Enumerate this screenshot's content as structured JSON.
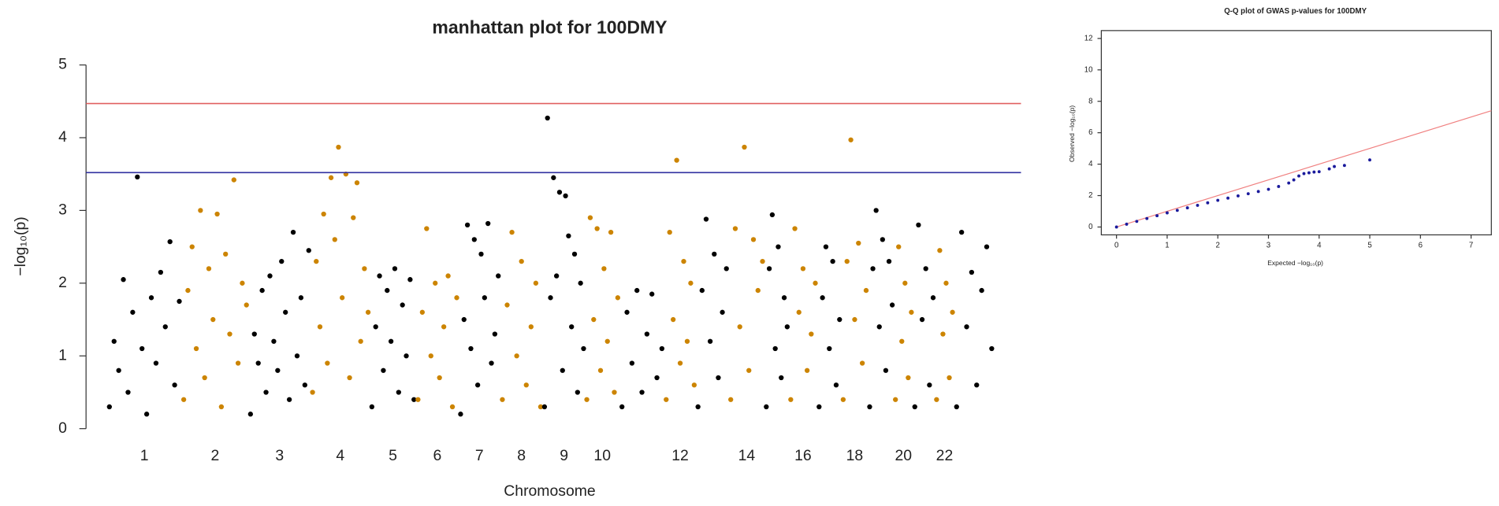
{
  "chart_data": [
    {
      "type": "manhattan",
      "title": "manhattan plot for 100DMY",
      "x_label": "Chromosome",
      "y_label": "−log₁₀(p)",
      "categories": [
        "1",
        "2",
        "3",
        "4",
        "5",
        "6",
        "7",
        "8",
        "9",
        "10",
        null,
        "12",
        null,
        "14",
        null,
        "16",
        null,
        "18",
        null,
        "20",
        null,
        "22",
        null
      ],
      "values": [
        [
          0.3,
          1.2,
          0.8,
          2.05,
          0.5,
          1.6,
          3.46,
          1.1,
          0.2,
          1.8,
          0.9,
          2.15,
          1.4,
          2.57,
          0.6,
          1.75
        ],
        [
          0.4,
          1.9,
          2.5,
          1.1,
          3.0,
          0.7,
          2.2,
          1.5,
          2.95,
          0.3,
          2.4,
          1.3,
          3.42,
          0.9,
          2.0,
          1.7
        ],
        [
          0.2,
          1.3,
          0.9,
          1.9,
          0.5,
          2.1,
          1.2,
          0.8,
          2.3,
          1.6,
          0.4,
          2.7,
          1.0,
          1.8,
          0.6,
          2.45
        ],
        [
          0.5,
          2.3,
          1.4,
          2.95,
          0.9,
          3.45,
          2.6,
          3.87,
          1.8,
          3.5,
          0.7,
          2.9,
          3.38,
          1.2,
          2.2,
          1.6
        ],
        [
          0.3,
          1.4,
          2.1,
          0.8,
          1.9,
          1.2,
          2.2,
          0.5,
          1.7,
          1.0,
          2.05,
          0.4
        ],
        [
          0.4,
          1.6,
          2.75,
          1.0,
          2.0,
          0.7,
          1.4,
          2.1,
          0.3,
          1.8
        ],
        [
          0.2,
          1.5,
          2.8,
          1.1,
          2.6,
          0.6,
          2.4,
          1.8,
          2.82,
          0.9,
          1.3,
          2.1
        ],
        [
          0.4,
          1.7,
          2.7,
          1.0,
          2.3,
          0.6,
          1.4,
          2.0,
          0.3
        ],
        [
          0.3,
          4.27,
          1.8,
          3.45,
          2.1,
          3.25,
          0.8,
          3.2,
          2.65,
          1.4,
          2.4,
          0.5,
          2.0,
          1.1
        ],
        [
          0.4,
          2.9,
          1.5,
          2.75,
          0.8,
          2.2,
          1.2,
          2.7,
          0.5,
          1.8
        ],
        [
          0.3,
          1.6,
          0.9,
          1.9,
          0.5,
          1.3,
          1.85,
          0.7,
          1.1
        ],
        [
          0.4,
          2.7,
          1.5,
          3.69,
          0.9,
          2.3,
          1.2,
          2.0,
          0.6
        ],
        [
          0.3,
          1.9,
          2.88,
          1.2,
          2.4,
          0.7,
          1.6,
          2.2
        ],
        [
          0.4,
          2.75,
          1.4,
          3.87,
          0.8,
          2.6,
          1.9,
          2.3
        ],
        [
          0.3,
          2.2,
          2.94,
          1.1,
          2.5,
          0.7,
          1.8,
          1.4
        ],
        [
          0.4,
          2.75,
          1.6,
          2.2,
          0.8,
          1.3,
          2.0
        ],
        [
          0.3,
          1.8,
          2.5,
          1.1,
          2.3,
          0.6,
          1.5
        ],
        [
          0.4,
          2.3,
          3.97,
          1.5,
          2.55,
          0.9,
          1.9
        ],
        [
          0.3,
          2.2,
          3.0,
          1.4,
          2.6,
          0.8,
          2.3,
          1.7
        ],
        [
          0.4,
          2.5,
          1.2,
          2.0,
          0.7,
          1.6
        ],
        [
          0.3,
          2.8,
          1.5,
          2.2,
          0.6,
          1.8
        ],
        [
          0.4,
          2.45,
          1.3,
          2.0,
          0.7,
          1.6
        ],
        [
          0.3,
          2.7,
          1.4,
          2.15,
          0.6,
          1.9,
          2.5,
          1.1
        ]
      ],
      "point_colors": [
        "#000000",
        "#cc8400"
      ],
      "hlines": [
        {
          "value": 4.47,
          "color": "#e06060"
        },
        {
          "value": 3.52,
          "color": "#3030a0"
        }
      ],
      "ylim": [
        0,
        5
      ],
      "yticks": [
        0,
        1,
        2,
        3,
        4,
        5
      ]
    },
    {
      "type": "qq",
      "title": "Q-Q plot of GWAS p-values for 100DMY",
      "x_label": "Expected −log₁₀(p)",
      "y_label": "Observed −log₁₀(p)",
      "x": [
        0,
        0.2,
        0.4,
        0.6,
        0.8,
        1.0,
        1.2,
        1.4,
        1.6,
        1.8,
        2.0,
        2.2,
        2.4,
        2.6,
        2.8,
        3.0,
        3.2,
        3.4,
        3.5,
        3.6,
        3.7,
        3.8,
        3.9,
        4.0,
        4.2,
        4.3,
        4.5,
        5.0
      ],
      "values": [
        0,
        0.18,
        0.36,
        0.54,
        0.72,
        0.9,
        1.06,
        1.22,
        1.38,
        1.54,
        1.7,
        1.84,
        1.98,
        2.12,
        2.26,
        2.4,
        2.58,
        2.8,
        3.0,
        3.25,
        3.4,
        3.45,
        3.5,
        3.52,
        3.7,
        3.85,
        3.92,
        4.27
      ],
      "color": "#1a1a9c",
      "line_color": "#f08080",
      "xlim": [
        -0.3,
        7.4
      ],
      "xticks": [
        0,
        1,
        2,
        3,
        4,
        5,
        6,
        7
      ],
      "ylim": [
        -0.5,
        12.5
      ],
      "yticks": [
        0,
        2,
        4,
        6,
        8,
        10,
        12
      ]
    }
  ]
}
